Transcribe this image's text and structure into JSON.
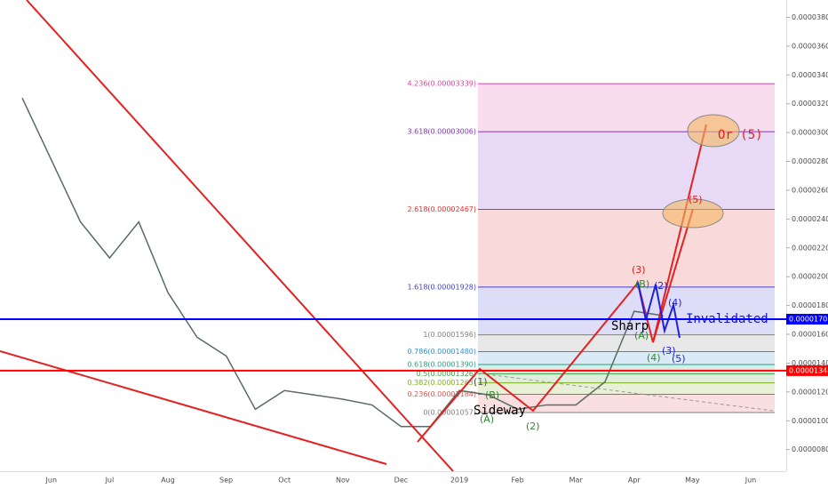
{
  "chart_data": {
    "type": "line",
    "categories": [
      null,
      "Jun",
      null,
      "Jul",
      null,
      "Aug",
      null,
      "Sep",
      null,
      "Oct",
      null,
      "Nov",
      null,
      "Dec",
      null,
      "2019",
      null,
      "Feb",
      null,
      "Mar",
      null,
      "Apr",
      null,
      "May",
      null,
      "Jun"
    ],
    "series": [
      {
        "color": "#5a6b62",
        "values": [
          3.24e-05,
          2.81e-05,
          2.38e-05,
          2.13e-05,
          2.38e-05,
          1.89e-05,
          1.58e-05,
          1.45e-05,
          1.08e-05,
          1.21e-05,
          1.18e-05,
          1.15e-05,
          1.11e-05,
          9.6e-06,
          9.6e-06,
          1.21e-05,
          1.18e-05,
          1.08e-05,
          1.11e-05,
          1.11e-05,
          1.27e-05,
          1.76e-05,
          1.73e-05,
          null,
          null,
          null
        ]
      }
    ],
    "ylim": [
      6.5e-06,
      3.92e-05
    ],
    "yticks": [
      {
        "value": 8e-06,
        "label": "0.00000800"
      },
      {
        "value": 1e-05,
        "label": "0.00001000"
      },
      {
        "value": 1.2e-05,
        "label": "0.00001200"
      },
      {
        "value": 1.4e-05,
        "label": "0.00001400"
      },
      {
        "value": 1.6e-05,
        "label": "0.00001600"
      },
      {
        "value": 1.8e-05,
        "label": "0.00001800"
      },
      {
        "value": 2e-05,
        "label": "0.00002000"
      },
      {
        "value": 2.2e-05,
        "label": "0.00002200"
      },
      {
        "value": 2.4e-05,
        "label": "0.00002400"
      },
      {
        "value": 2.6e-05,
        "label": "0.00002600"
      },
      {
        "value": 2.8e-05,
        "label": "0.00002800"
      },
      {
        "value": 3e-05,
        "label": "0.00003000"
      },
      {
        "value": 3.2e-05,
        "label": "0.00003200"
      },
      {
        "value": 3.4e-05,
        "label": "0.00003400"
      },
      {
        "value": 3.6e-05,
        "label": "0.00003600"
      },
      {
        "value": 3.8e-05,
        "label": "0.00003800"
      }
    ],
    "fib_levels": [
      {
        "value": 3.339e-05,
        "label": "4.236(0.00003339)",
        "color": "#e040a0"
      },
      {
        "value": 3.006e-05,
        "label": "3.618(0.00003006)",
        "color": "#8030c0"
      },
      {
        "value": 2.467e-05,
        "label": "2.618(0.00002467)",
        "color": "#e03030"
      },
      {
        "value": 1.928e-05,
        "label": "1.618(0.00001928)",
        "color": "#4040d0"
      },
      {
        "value": 1.596e-05,
        "label": "1(0.00001596)",
        "color": "#808080"
      },
      {
        "value": 1.48e-05,
        "label": "0.786(0.00001480)",
        "color": "#3090d0"
      },
      {
        "value": 1.39e-05,
        "label": "0.618(0.00001390)",
        "color": "#20a080"
      },
      {
        "value": 1.326e-05,
        "label": "0.5(0.00001326)",
        "color": "#40a040"
      },
      {
        "value": 1.263e-05,
        "label": "0.382(0.00001263)",
        "color": "#80b020"
      },
      {
        "value": 1.184e-05,
        "label": "0.236(0.00001184)",
        "color": "#e05050"
      },
      {
        "value": 1.057e-05,
        "label": "0(0.00001057)",
        "color": "#808080"
      }
    ],
    "price_lines": [
      {
        "value": 1.705e-05,
        "color": "#0000ff"
      },
      {
        "value": 1.348e-05,
        "color": "#ff0000"
      }
    ],
    "annotations": [
      "Sideway",
      "Sharp",
      "Invalidated",
      "Or (5)"
    ],
    "wave_labels": [
      "(1)",
      "(2)",
      "(3)",
      "(4)",
      "(5)",
      "(A)",
      "(B)",
      "(A)",
      "(B)",
      "(2)",
      "(4)",
      "(3)",
      "(5)"
    ]
  }
}
